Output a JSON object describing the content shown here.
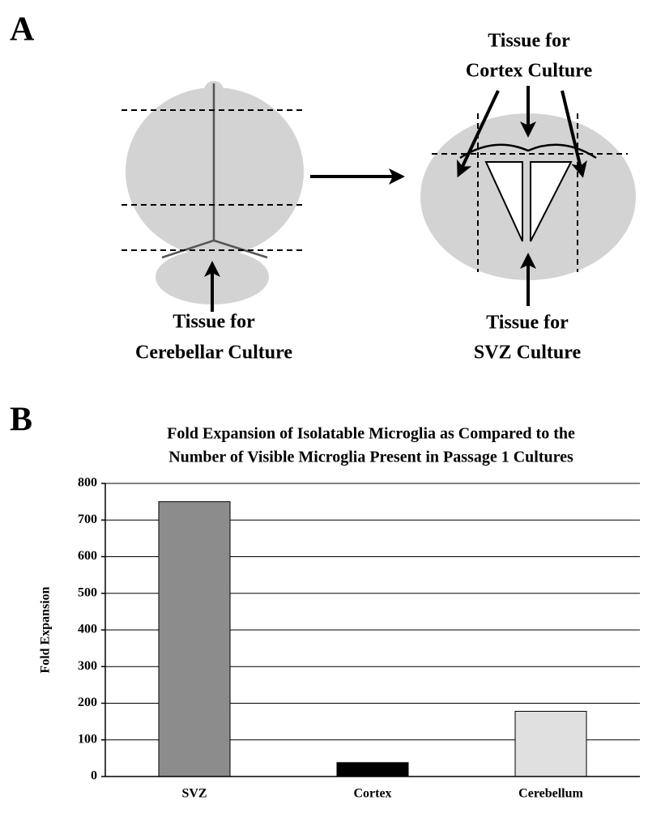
{
  "panel_a": {
    "label": "A",
    "cerebellar_label": [
      "Tissue for",
      "Cerebellar Culture"
    ],
    "cortex_label": [
      "Tissue for",
      "Cortex Culture"
    ],
    "svz_label": [
      "Tissue for",
      "SVZ Culture"
    ]
  },
  "chart_data": {
    "type": "bar",
    "panel_label": "B",
    "title": [
      "Fold Expansion of Isolatable Microglia as Compared to the",
      "Number of Visible Microglia Present in Passage 1 Cultures"
    ],
    "y_label": "Fold Expansion",
    "categories": [
      "SVZ",
      "Cortex",
      "Cerebellum"
    ],
    "values": [
      750,
      38,
      178
    ],
    "colors": [
      "#8c8c8c",
      "#000000",
      "#e0e0e0"
    ],
    "ylim": [
      0,
      800
    ],
    "yticks": [
      0,
      100,
      200,
      300,
      400,
      500,
      600,
      700,
      800
    ],
    "grid": true
  }
}
